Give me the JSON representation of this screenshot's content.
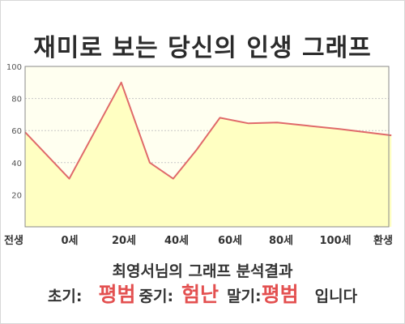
{
  "title": "재미로 보는 당신의 인생 그래프",
  "chart_data": {
    "type": "area",
    "categories": [
      "전생",
      "0세",
      "20세",
      "40세",
      "60세",
      "80세",
      "100세",
      "환생"
    ],
    "series": [
      {
        "values": [
          59,
          30,
          90,
          40,
          30,
          48,
          68,
          64.5,
          65,
          63,
          61,
          57
        ]
      }
    ],
    "x": [
      -0.85,
      0,
      1,
      1.55,
      2,
      2.45,
      2.9,
      3.45,
      4,
      4.6,
      5.2,
      6.2
    ],
    "yticks": [
      20,
      40,
      60,
      80,
      100
    ],
    "ylim": [
      0,
      100
    ],
    "grid": true,
    "colors": {
      "line": "#e06a6a",
      "fill": "#ffffc2",
      "grid": "#c8c8c8"
    }
  },
  "result": {
    "heading": "최영서님의 그래프 분석결과",
    "early_label": "초기:",
    "early_value": "평범",
    "middle_label": "중기:",
    "middle_value": "험난",
    "late_label": "말기:",
    "late_value": "평범",
    "suffix": "입니다"
  }
}
